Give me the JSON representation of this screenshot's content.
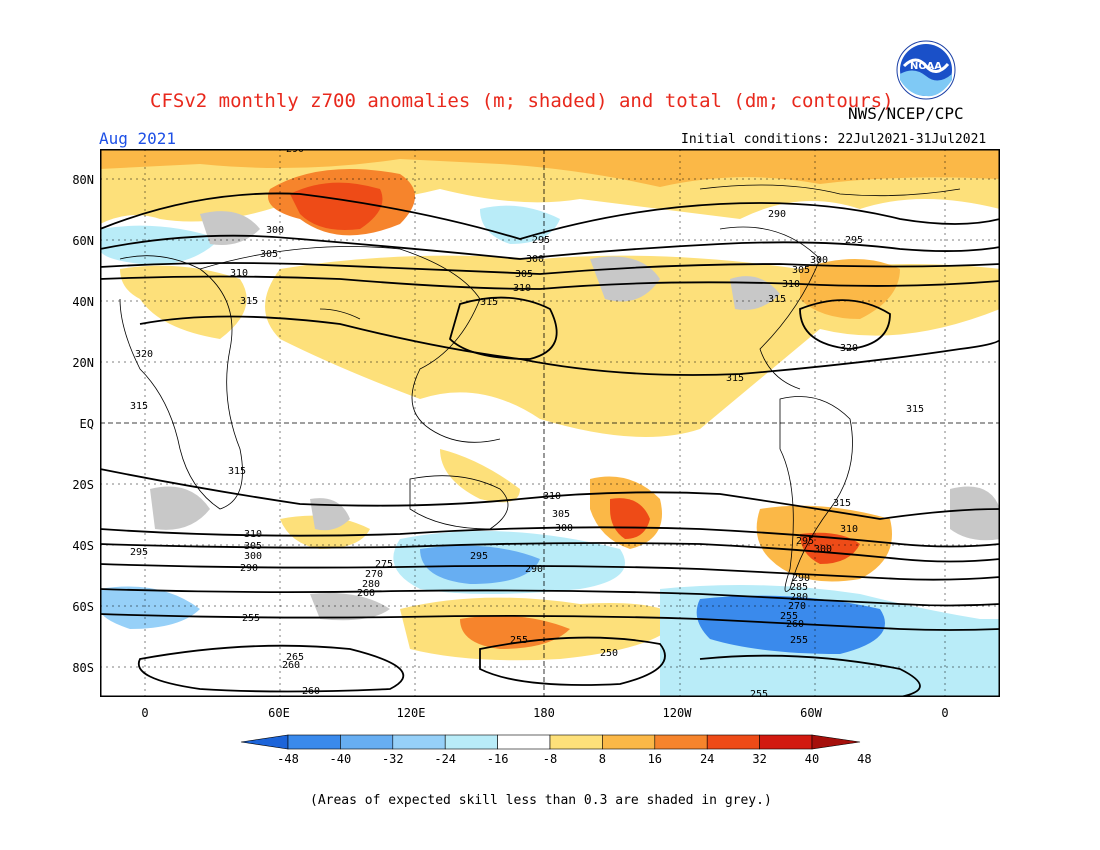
{
  "title": "CFSv2 monthly z700 anomalies (m; shaded) and total (dm; contours)",
  "agency": "NWS/NCEP/CPC",
  "logo_text": "NOAA",
  "month": "Aug 2021",
  "initial_conditions": "Initial conditions: 22Jul2021-31Jul2021",
  "lat_labels": [
    "80N",
    "60N",
    "40N",
    "20N",
    "EQ",
    "20S",
    "40S",
    "60S",
    "80S"
  ],
  "lon_labels": [
    "0",
    "60E",
    "120E",
    "180",
    "120W",
    "60W",
    "0"
  ],
  "colorbar": {
    "ticks": [
      "-48",
      "-40",
      "-32",
      "-24",
      "-16",
      "-8",
      "8",
      "16",
      "24",
      "32",
      "40",
      "48"
    ],
    "colors": [
      "#1c64d9",
      "#3a8aec",
      "#67aef2",
      "#96d0f8",
      "#b9ecf8",
      "#ffffff",
      "#fde07a",
      "#fbb847",
      "#f6842c",
      "#ee4b17",
      "#d21a10",
      "#a50f0b"
    ]
  },
  "contour_labels": [
    "290",
    "300",
    "305",
    "310",
    "315",
    "320",
    "295",
    "255",
    "260",
    "265",
    "270",
    "275",
    "280",
    "285",
    "250"
  ],
  "footnote": "(Areas of expected skill less than 0.3 are shaded in grey.)"
}
